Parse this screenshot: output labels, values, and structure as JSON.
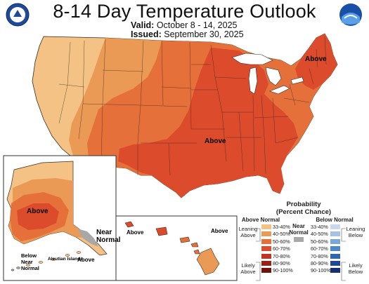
{
  "title": "8-14 Day Temperature Outlook",
  "valid_label": "Valid:",
  "valid_value": "October 8 - 14, 2025",
  "issued_label": "Issued:",
  "issued_value": "September 30, 2025",
  "logos": {
    "left": "noaa-cpc-seal-icon",
    "right": "noaa-logo-icon"
  },
  "map_labels": {
    "above_ne": "Above",
    "above_central": "Above",
    "above_alaska": "Above",
    "near_normal_ak": "Near\nNormal",
    "above_hawaii_left": "Above",
    "above_hawaii_right": "Above",
    "below_near_normal": "Below\nNear\nNormal",
    "aleutian_islands": "Aleutian Islands",
    "above_aleutian": "Above"
  },
  "legend": {
    "title": "Probability\n(Percent Chance)",
    "above_header": "Above Normal",
    "near_header": "Near\nNormal",
    "below_header": "Below Normal",
    "leaning_above": "Leaning\nAbove",
    "likely_above": "Likely\nAbove",
    "leaning_below": "Leaning\nBelow",
    "likely_below": "Likely\nBelow",
    "ranges": [
      "33-40%",
      "40-50%",
      "50-60%",
      "60-70%",
      "70-80%",
      "80-90%",
      "90-100%"
    ],
    "above_colors": [
      "#f3c284",
      "#eb9a55",
      "#e67039",
      "#dc4b2c",
      "#c23420",
      "#9a2015",
      "#6e130c"
    ],
    "below_colors": [
      "#c9d8ed",
      "#a5c2e3",
      "#7ba7d8",
      "#4d87c8",
      "#2d67b2",
      "#1f4893",
      "#172f72"
    ],
    "near_color": "#a8a8a8"
  },
  "colors": {
    "c33": "#f3c284",
    "c40": "#eb9a55",
    "c50": "#e67039",
    "c60": "#dc4b2c",
    "near": "#a8a8a8",
    "water": "#ffffff",
    "border": "#3a2a20"
  }
}
